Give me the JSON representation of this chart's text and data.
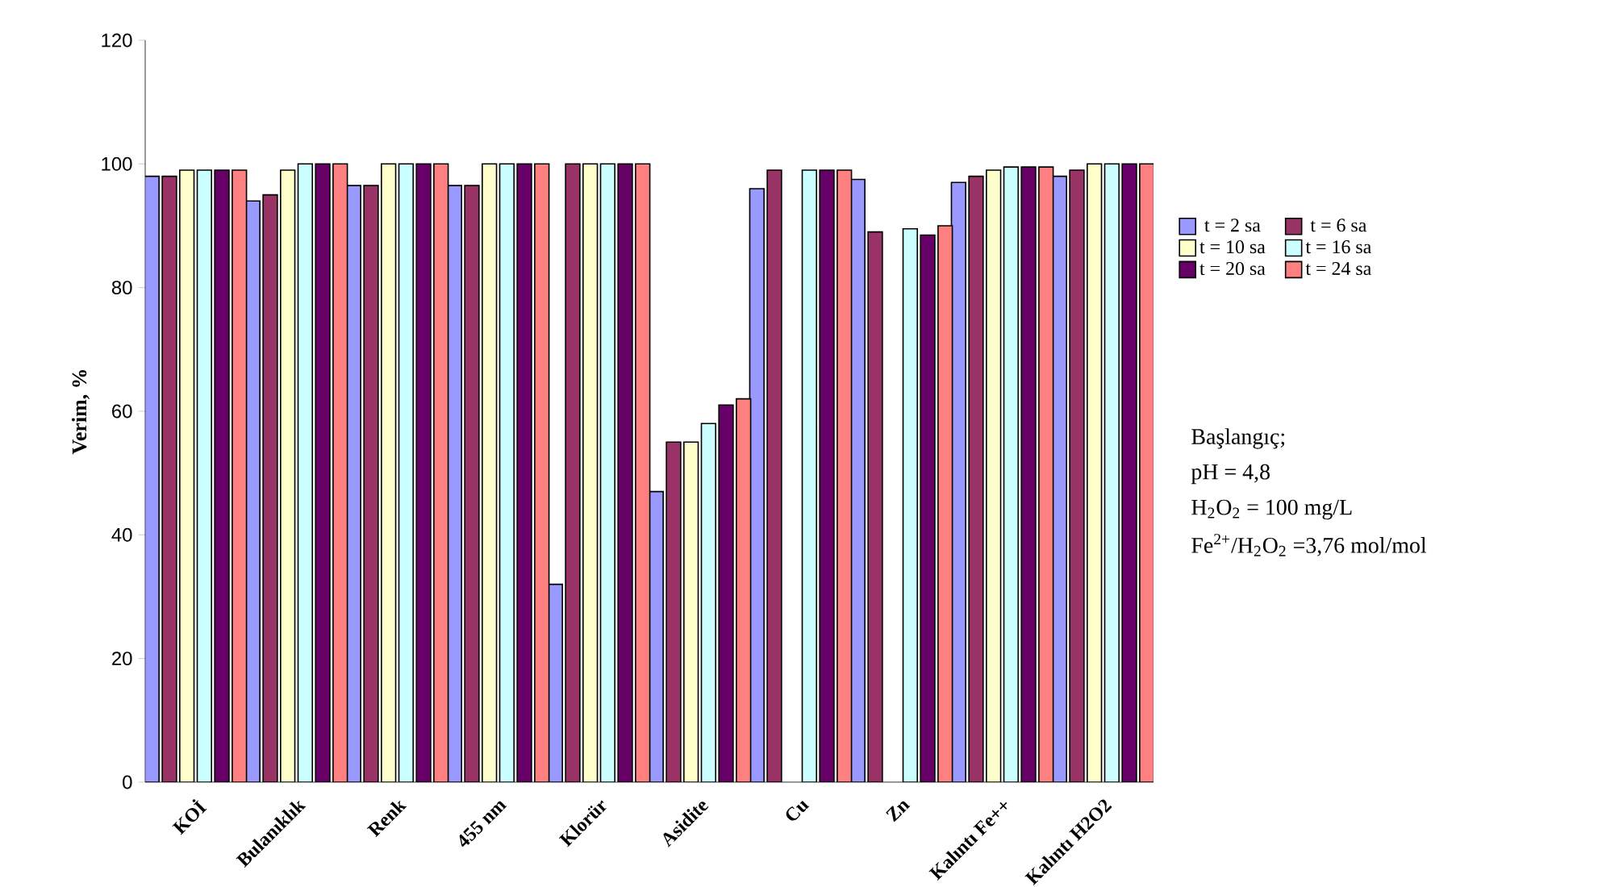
{
  "chart_data": {
    "type": "bar",
    "ylabel": "Verim, %",
    "categories": [
      "KOİ",
      "Bulanıklık",
      "Renk",
      "455 nm",
      "Klorür",
      "Asidite",
      "Cu",
      "Zn",
      "Kalıntı Fe++",
      "Kalıntı H2O2"
    ],
    "series": [
      {
        "name": "t = 2 sa",
        "color": "#9999ff",
        "values": [
          98,
          94,
          96.5,
          96.5,
          32,
          47,
          96,
          97.5,
          97,
          98
        ]
      },
      {
        "name": "t = 6 sa",
        "color": "#993366",
        "values": [
          98,
          95,
          96.5,
          96.5,
          100,
          55,
          99,
          89,
          98,
          99
        ]
      },
      {
        "name": "t = 10 sa",
        "color": "#ffffcc",
        "values": [
          99,
          99,
          100,
          100,
          100,
          55,
          null,
          null,
          99,
          100
        ]
      },
      {
        "name": "t = 16 sa",
        "color": "#ccffff",
        "values": [
          99,
          100,
          100,
          100,
          100,
          58,
          99,
          89.5,
          99.5,
          100
        ]
      },
      {
        "name": "t = 20 sa",
        "color": "#660066",
        "values": [
          99,
          100,
          100,
          100,
          100,
          61,
          99,
          88.5,
          99.5,
          100
        ]
      },
      {
        "name": "t = 24 sa",
        "color": "#ff8080",
        "values": [
          99,
          100,
          100,
          100,
          100,
          62,
          99,
          90,
          99.5,
          100
        ]
      }
    ],
    "ylim": [
      0,
      120
    ],
    "yticks": [
      0,
      20,
      40,
      60,
      80,
      100,
      120
    ],
    "legend": "right",
    "annotations": [
      "Başlangıç;",
      "pH = 4,8",
      "H$_{2}$O$_{2}$ = 100 mg/L",
      "Fe$^{2+}$/H$_{2}$O$_{2}$ =3,76 mol/mol"
    ]
  }
}
